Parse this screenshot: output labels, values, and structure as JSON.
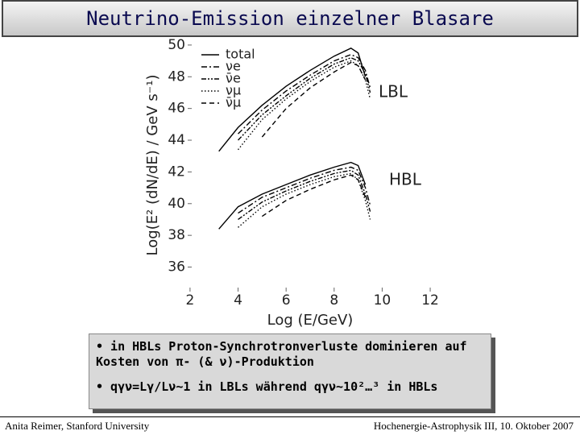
{
  "slide": {
    "title": "Neutrino-Emission einzelner Blasare",
    "bullets": [
      "• in HBLs Proton-Synchrotronverluste dominieren auf Kosten von π- (& ν)-Produktion",
      "• qγν=Lγ/Lν~1 in LBLs während qγν~10²…³ in HBLs"
    ],
    "footer_left": "Anita Reimer, Stanford University",
    "footer_right": "Hochenergie-Astrophysik III, 10. Oktober 2007"
  },
  "chart_data": {
    "type": "line",
    "x_label": "Log (E/GeV)",
    "y_label": "Log(E² (dN/dE) / GeV s⁻¹)",
    "xlim": [
      1.5,
      12.3
    ],
    "xticks": [
      2,
      4,
      6,
      8,
      10,
      12
    ],
    "ylim": [
      34.3,
      50.3
    ],
    "yticks": [
      36,
      38,
      40,
      42,
      44,
      46,
      48,
      50
    ],
    "x": [
      3.2,
      4,
      5,
      6,
      7,
      8,
      8.7,
      9.0,
      9.3,
      9.5
    ],
    "legend": [
      {
        "name": "total",
        "dash": "solid",
        "color": "#000000"
      },
      {
        "name": "νe",
        "dash": "dashdot",
        "color": "#000000"
      },
      {
        "name": "ν̄e",
        "dash": "dashdotdot",
        "color": "#000000"
      },
      {
        "name": "νμ",
        "dash": "dotted",
        "color": "#000000"
      },
      {
        "name": "ν̄μ",
        "dash": "dashed",
        "color": "#000000"
      }
    ],
    "groups": [
      {
        "label": "LBL",
        "series": [
          {
            "values": [
              43.3,
              44.8,
              46.2,
              47.4,
              48.4,
              49.3,
              49.8,
              49.5,
              48.0,
              null
            ]
          },
          {
            "values": [
              null,
              44.4,
              45.9,
              47.1,
              48.1,
              49.0,
              49.4,
              49.2,
              48.4,
              47.3
            ]
          },
          {
            "values": [
              null,
              44.0,
              45.6,
              46.8,
              47.9,
              48.8,
              49.2,
              49.0,
              48.2,
              47.0
            ]
          },
          {
            "values": [
              null,
              43.4,
              45.3,
              46.6,
              47.7,
              48.6,
              49.0,
              48.7,
              47.8,
              46.6
            ]
          },
          {
            "values": [
              null,
              null,
              44.2,
              46.0,
              47.3,
              48.3,
              48.9,
              48.7,
              47.8,
              null
            ]
          }
        ]
      },
      {
        "label": "HBL",
        "series": [
          {
            "values": [
              38.4,
              39.8,
              40.6,
              41.2,
              41.8,
              42.3,
              42.6,
              42.4,
              41.2,
              null
            ]
          },
          {
            "values": [
              null,
              39.4,
              40.4,
              41.0,
              41.6,
              42.1,
              42.3,
              42.1,
              41.0,
              39.9
            ]
          },
          {
            "values": [
              null,
              39.0,
              40.1,
              40.8,
              41.4,
              41.9,
              42.1,
              41.8,
              40.6,
              39.5
            ]
          },
          {
            "values": [
              null,
              38.5,
              39.8,
              40.6,
              41.2,
              41.7,
              41.9,
              41.5,
              40.2,
              39.0
            ]
          },
          {
            "values": [
              null,
              null,
              39.2,
              40.2,
              40.9,
              41.5,
              41.8,
              41.5,
              40.4,
              null
            ]
          }
        ]
      }
    ]
  }
}
